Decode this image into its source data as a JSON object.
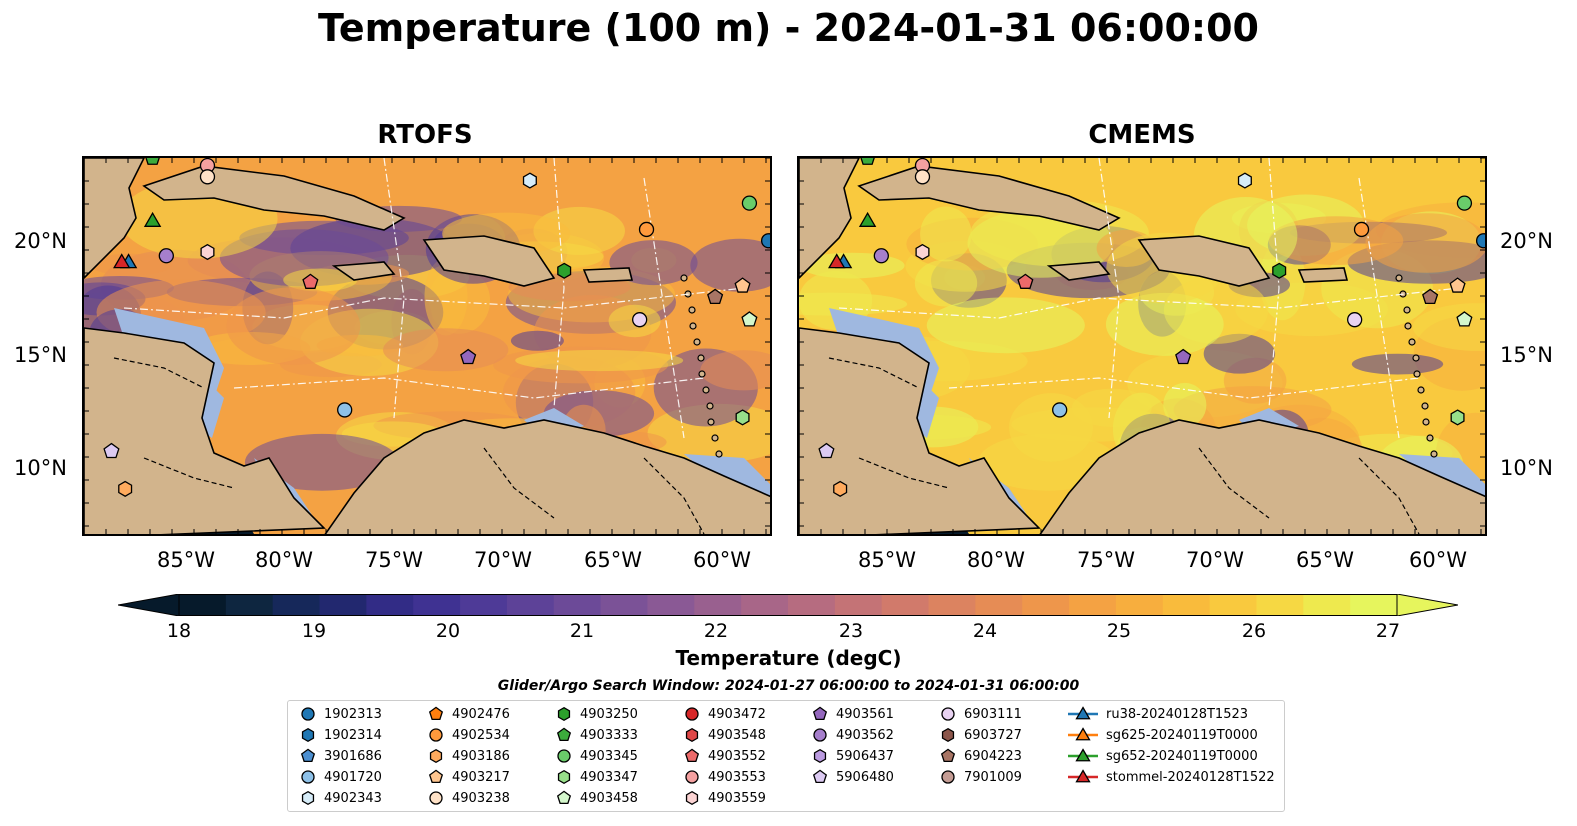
{
  "title": "Temperature (100 m) - 2024-01-31 06:00:00",
  "panels": [
    {
      "title": "RTOFS",
      "palette": "rtofs"
    },
    {
      "title": "CMEMS",
      "palette": "cmems"
    }
  ],
  "lat_labels": [
    "20°N",
    "15°N",
    "10°N"
  ],
  "lon_labels": [
    "85°W",
    "80°W",
    "75°W",
    "70°W",
    "65°W",
    "60°W"
  ],
  "colorbar": {
    "label": "Temperature (degC)",
    "ticks": [
      "18",
      "19",
      "20",
      "21",
      "22",
      "23",
      "24",
      "25",
      "26",
      "27"
    ],
    "colors": [
      "#061a2b",
      "#0e2640",
      "#16285a",
      "#22286f",
      "#322c86",
      "#3f3292",
      "#4e3a97",
      "#5d4298",
      "#6c4a98",
      "#7b5297",
      "#8a5995",
      "#99608f",
      "#a86688",
      "#b66c80",
      "#c47376",
      "#d17a6b",
      "#dc8360",
      "#e68c55",
      "#ee964b",
      "#f4a243",
      "#f7ae3e",
      "#f9bb3c",
      "#f9c93e",
      "#f6d843",
      "#eee94e",
      "#e6f55d"
    ]
  },
  "legend": {
    "title": "Glider/Argo Search Window: 2024-01-27 06:00:00 to 2024-01-31 06:00:00",
    "columns": [
      [
        {
          "label": "1902313",
          "marker": "circle",
          "color": "#1f77b4"
        },
        {
          "label": "1902314",
          "marker": "hexagon",
          "color": "#1f77b4"
        },
        {
          "label": "3901686",
          "marker": "pentagon",
          "color": "#4c8fd0"
        },
        {
          "label": "4901720",
          "marker": "circle",
          "color": "#8ec1e8"
        },
        {
          "label": "4902343",
          "marker": "hexagon",
          "color": "#d6ecf8"
        }
      ],
      [
        {
          "label": "4902476",
          "marker": "pentagon",
          "color": "#ff7f0e"
        },
        {
          "label": "4902534",
          "marker": "circle",
          "color": "#ff9a3c"
        },
        {
          "label": "4903186",
          "marker": "hexagon",
          "color": "#ffab5e"
        },
        {
          "label": "4903217",
          "marker": "pentagon",
          "color": "#ffc58f"
        },
        {
          "label": "4903238",
          "marker": "circle",
          "color": "#ffe2c7"
        }
      ],
      [
        {
          "label": "4903250",
          "marker": "hexagon",
          "color": "#2ca02c"
        },
        {
          "label": "4903333",
          "marker": "pentagon",
          "color": "#3cab3c"
        },
        {
          "label": "4903345",
          "marker": "circle",
          "color": "#6acc6a"
        },
        {
          "label": "4903347",
          "marker": "hexagon",
          "color": "#98df8a"
        },
        {
          "label": "4903458",
          "marker": "pentagon",
          "color": "#d4f7cc"
        }
      ],
      [
        {
          "label": "4903472",
          "marker": "circle",
          "color": "#d62728"
        },
        {
          "label": "4903548",
          "marker": "hexagon",
          "color": "#e04848"
        },
        {
          "label": "4903552",
          "marker": "pentagon",
          "color": "#ec6a6a"
        },
        {
          "label": "4903553",
          "marker": "circle",
          "color": "#f4a0a0"
        },
        {
          "label": "4903559",
          "marker": "hexagon",
          "color": "#fbd3d3"
        }
      ],
      [
        {
          "label": "4903561",
          "marker": "pentagon",
          "color": "#9467bd"
        },
        {
          "label": "4903562",
          "marker": "circle",
          "color": "#a67fcc"
        },
        {
          "label": "5906437",
          "marker": "hexagon",
          "color": "#bb9be0"
        },
        {
          "label": "5906480",
          "marker": "pentagon",
          "color": "#dccaf2"
        }
      ],
      [
        {
          "label": "6903111",
          "marker": "circle",
          "color": "#e9d3f2"
        },
        {
          "label": "6903727",
          "marker": "hexagon",
          "color": "#8c564b"
        },
        {
          "label": "6904223",
          "marker": "pentagon",
          "color": "#a87565"
        },
        {
          "label": "7901009",
          "marker": "circle",
          "color": "#c49c94"
        }
      ],
      [
        {
          "label": "ru38-20240128T1523",
          "marker": "triangle-line",
          "color": "#1f77b4"
        },
        {
          "label": "sg625-20240119T0000",
          "marker": "triangle-line",
          "color": "#ff7f0e"
        },
        {
          "label": "sg652-20240119T0000",
          "marker": "triangle-line",
          "color": "#2ca02c"
        },
        {
          "label": "stommel-20240128T1522",
          "marker": "triangle-line",
          "color": "#d62728"
        }
      ]
    ]
  },
  "map_colors": {
    "land": "#d2b48c",
    "shelf": "#9fb8e0",
    "deep_pacific": "#061a2b",
    "rtofs_ocean": [
      "#f4a243",
      "#ee964b",
      "#f9bb3c",
      "#6c4a98",
      "#4e3a97",
      "#e68c55",
      "#f6d843"
    ],
    "cmems_ocean": [
      "#f9c93e",
      "#eee94e",
      "#f7ae3e",
      "#e6f55d",
      "#f4a243",
      "#4e3a97",
      "#f6d843"
    ]
  }
}
